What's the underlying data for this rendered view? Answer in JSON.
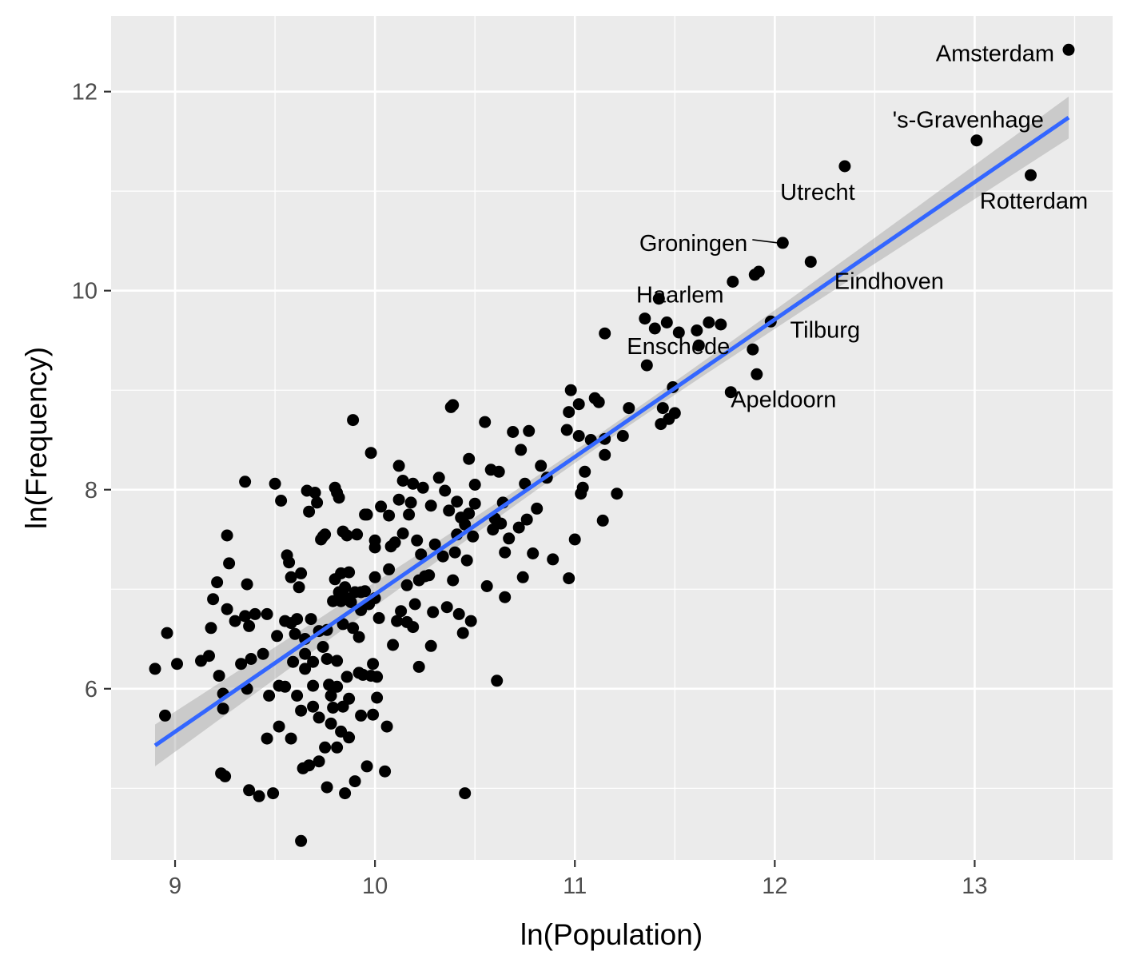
{
  "chart_data": {
    "type": "scatter",
    "xlabel": "ln(Population)",
    "ylabel": "ln(Frequency)",
    "xlim": [
      8.68,
      13.69
    ],
    "ylim": [
      4.28,
      12.76
    ],
    "x_ticks": [
      9,
      10,
      11,
      12,
      13
    ],
    "y_ticks": [
      6,
      8,
      10,
      12
    ],
    "grid": true,
    "legend": "none",
    "colors": {
      "panel": "#ebebeb",
      "grid": "#ffffff",
      "point": "#000000",
      "fit_line": "#3366ff",
      "confidence_band": "#999999"
    },
    "fit": {
      "method": "linear",
      "x": [
        8.9,
        13.47
      ],
      "y": [
        5.43,
        11.74
      ],
      "ci_halfwidth_ends": 0.21,
      "ci_halfwidth_center": 0.06
    },
    "labeled_points": [
      {
        "label": "Amsterdam",
        "x": 13.47,
        "y": 12.42
      },
      {
        "label": "'s-Gravenhage",
        "x": 13.01,
        "y": 11.51
      },
      {
        "label": "Rotterdam",
        "x": 13.28,
        "y": 11.16
      },
      {
        "label": "Utrecht",
        "x": 12.35,
        "y": 11.25
      },
      {
        "label": "Groningen",
        "x": 12.04,
        "y": 10.48
      },
      {
        "label": "Eindhoven",
        "x": 12.18,
        "y": 10.29
      },
      {
        "label": "Haarlem",
        "x": 11.79,
        "y": 10.09
      },
      {
        "label": "Tilburg",
        "x": 11.98,
        "y": 9.69
      },
      {
        "label": "Enschede",
        "x": 11.63,
        "y": 9.45
      },
      {
        "label": "Apeldoorn",
        "x": 11.78,
        "y": 8.98
      }
    ],
    "points": [
      [
        8.9,
        6.2
      ],
      [
        8.95,
        5.73
      ],
      [
        8.96,
        6.56
      ],
      [
        9.01,
        6.25
      ],
      [
        9.13,
        6.28
      ],
      [
        9.17,
        6.33
      ],
      [
        9.18,
        6.61
      ],
      [
        9.19,
        6.9
      ],
      [
        9.21,
        7.07
      ],
      [
        9.22,
        6.13
      ],
      [
        9.23,
        5.15
      ],
      [
        9.24,
        5.95
      ],
      [
        9.24,
        5.8
      ],
      [
        9.25,
        5.12
      ],
      [
        9.26,
        6.8
      ],
      [
        9.26,
        7.54
      ],
      [
        9.27,
        7.26
      ],
      [
        9.3,
        6.68
      ],
      [
        9.33,
        6.25
      ],
      [
        9.35,
        8.08
      ],
      [
        9.35,
        6.73
      ],
      [
        9.36,
        7.05
      ],
      [
        9.36,
        6.0
      ],
      [
        9.37,
        6.63
      ],
      [
        9.37,
        4.98
      ],
      [
        9.38,
        6.3
      ],
      [
        9.4,
        6.75
      ],
      [
        9.42,
        4.92
      ],
      [
        9.44,
        6.35
      ],
      [
        9.46,
        5.5
      ],
      [
        9.46,
        6.75
      ],
      [
        9.47,
        5.93
      ],
      [
        9.49,
        4.95
      ],
      [
        9.5,
        8.06
      ],
      [
        9.51,
        6.53
      ],
      [
        9.52,
        5.62
      ],
      [
        9.52,
        6.03
      ],
      [
        9.53,
        7.89
      ],
      [
        9.55,
        6.02
      ],
      [
        9.55,
        6.68
      ],
      [
        9.56,
        7.34
      ],
      [
        9.57,
        7.27
      ],
      [
        9.58,
        7.12
      ],
      [
        9.58,
        5.5
      ],
      [
        9.58,
        6.66
      ],
      [
        9.59,
        6.27
      ],
      [
        9.6,
        6.55
      ],
      [
        9.61,
        6.7
      ],
      [
        9.61,
        5.93
      ],
      [
        9.62,
        7.02
      ],
      [
        9.63,
        5.78
      ],
      [
        9.63,
        7.16
      ],
      [
        9.63,
        4.47
      ],
      [
        9.64,
        5.2
      ],
      [
        9.65,
        6.35
      ],
      [
        9.65,
        6.5
      ],
      [
        9.65,
        6.2
      ],
      [
        9.66,
        7.99
      ],
      [
        9.67,
        7.78
      ],
      [
        9.67,
        5.23
      ],
      [
        9.68,
        6.7
      ],
      [
        9.69,
        6.03
      ],
      [
        9.69,
        6.27
      ],
      [
        9.69,
        5.82
      ],
      [
        9.7,
        7.97
      ],
      [
        9.71,
        7.87
      ],
      [
        9.72,
        5.27
      ],
      [
        9.72,
        6.58
      ],
      [
        9.72,
        5.71
      ],
      [
        9.73,
        7.5
      ],
      [
        9.74,
        6.42
      ],
      [
        9.74,
        7.53
      ],
      [
        9.75,
        5.41
      ],
      [
        9.75,
        7.55
      ],
      [
        9.76,
        6.3
      ],
      [
        9.76,
        6.59
      ],
      [
        9.76,
        5.01
      ],
      [
        9.77,
        6.04
      ],
      [
        9.78,
        5.93
      ],
      [
        9.78,
        5.65
      ],
      [
        9.79,
        6.88
      ],
      [
        9.79,
        5.81
      ],
      [
        9.8,
        8.02
      ],
      [
        9.8,
        7.1
      ],
      [
        9.81,
        7.97
      ],
      [
        9.81,
        6.02
      ],
      [
        9.81,
        6.28
      ],
      [
        9.81,
        5.41
      ],
      [
        9.82,
        7.92
      ],
      [
        9.82,
        6.97
      ],
      [
        9.83,
        6.88
      ],
      [
        9.83,
        5.57
      ],
      [
        9.83,
        7.16
      ],
      [
        9.84,
        6.65
      ],
      [
        9.84,
        5.82
      ],
      [
        9.84,
        7.58
      ],
      [
        9.85,
        7.02
      ],
      [
        9.85,
        4.95
      ],
      [
        9.85,
        6.92
      ],
      [
        9.86,
        7.54
      ],
      [
        9.86,
        6.12
      ],
      [
        9.87,
        5.9
      ],
      [
        9.87,
        5.51
      ],
      [
        9.87,
        7.17
      ],
      [
        9.88,
        6.87
      ],
      [
        9.89,
        8.7
      ],
      [
        9.89,
        6.61
      ],
      [
        9.9,
        5.07
      ],
      [
        9.9,
        6.97
      ],
      [
        9.91,
        7.55
      ],
      [
        9.92,
        6.16
      ],
      [
        9.92,
        6.52
      ],
      [
        9.93,
        6.97
      ],
      [
        9.93,
        5.73
      ],
      [
        9.93,
        6.79
      ],
      [
        9.94,
        6.14
      ],
      [
        9.95,
        7.75
      ],
      [
        9.95,
        6.98
      ],
      [
        9.96,
        7.75
      ],
      [
        9.96,
        5.22
      ],
      [
        9.97,
        6.85
      ],
      [
        9.98,
        8.37
      ],
      [
        9.98,
        6.13
      ],
      [
        9.99,
        6.25
      ],
      [
        9.99,
        5.74
      ],
      [
        10.0,
        7.12
      ],
      [
        10.0,
        7.49
      ],
      [
        10.0,
        7.42
      ],
      [
        10.0,
        6.91
      ],
      [
        10.01,
        6.12
      ],
      [
        10.01,
        5.91
      ],
      [
        10.02,
        6.71
      ],
      [
        10.03,
        7.83
      ],
      [
        10.05,
        5.17
      ],
      [
        10.06,
        5.62
      ],
      [
        10.07,
        7.74
      ],
      [
        10.07,
        7.2
      ],
      [
        10.08,
        7.43
      ],
      [
        10.09,
        6.44
      ],
      [
        10.1,
        7.47
      ],
      [
        10.11,
        6.68
      ],
      [
        10.12,
        7.9
      ],
      [
        10.12,
        8.24
      ],
      [
        10.13,
        6.78
      ],
      [
        10.14,
        7.56
      ],
      [
        10.14,
        8.09
      ],
      [
        10.16,
        6.67
      ],
      [
        10.16,
        7.04
      ],
      [
        10.17,
        7.75
      ],
      [
        10.18,
        7.87
      ],
      [
        10.19,
        6.62
      ],
      [
        10.19,
        8.06
      ],
      [
        10.2,
        6.85
      ],
      [
        10.21,
        7.49
      ],
      [
        10.22,
        6.22
      ],
      [
        10.22,
        7.09
      ],
      [
        10.23,
        7.35
      ],
      [
        10.24,
        8.02
      ],
      [
        10.25,
        7.13
      ],
      [
        10.27,
        7.14
      ],
      [
        10.28,
        7.84
      ],
      [
        10.28,
        6.43
      ],
      [
        10.29,
        6.77
      ],
      [
        10.3,
        7.45
      ],
      [
        10.32,
        8.12
      ],
      [
        10.34,
        7.33
      ],
      [
        10.35,
        7.99
      ],
      [
        10.36,
        6.82
      ],
      [
        10.37,
        7.79
      ],
      [
        10.38,
        8.83
      ],
      [
        10.39,
        8.85
      ],
      [
        10.39,
        7.09
      ],
      [
        10.4,
        7.37
      ],
      [
        10.41,
        7.55
      ],
      [
        10.41,
        7.88
      ],
      [
        10.42,
        6.75
      ],
      [
        10.43,
        7.72
      ],
      [
        10.44,
        6.56
      ],
      [
        10.45,
        4.95
      ],
      [
        10.45,
        7.65
      ],
      [
        10.46,
        7.29
      ],
      [
        10.47,
        8.31
      ],
      [
        10.47,
        7.76
      ],
      [
        10.48,
        6.68
      ],
      [
        10.49,
        7.53
      ],
      [
        10.5,
        8.05
      ],
      [
        10.5,
        7.86
      ],
      [
        10.55,
        8.68
      ],
      [
        10.56,
        7.03
      ],
      [
        10.58,
        8.2
      ],
      [
        10.59,
        7.6
      ],
      [
        10.6,
        7.71
      ],
      [
        10.61,
        6.08
      ],
      [
        10.62,
        8.18
      ],
      [
        10.63,
        7.66
      ],
      [
        10.64,
        7.87
      ],
      [
        10.65,
        6.92
      ],
      [
        10.65,
        7.37
      ],
      [
        10.67,
        7.51
      ],
      [
        10.69,
        8.58
      ],
      [
        10.72,
        7.62
      ],
      [
        10.73,
        8.4
      ],
      [
        10.74,
        7.12
      ],
      [
        10.75,
        8.06
      ],
      [
        10.76,
        7.7
      ],
      [
        10.77,
        8.59
      ],
      [
        10.79,
        7.36
      ],
      [
        10.81,
        7.81
      ],
      [
        10.83,
        8.24
      ],
      [
        10.86,
        8.12
      ],
      [
        10.89,
        7.3
      ],
      [
        10.96,
        8.6
      ],
      [
        10.97,
        7.11
      ],
      [
        10.97,
        8.78
      ],
      [
        10.98,
        9.0
      ],
      [
        11.0,
        7.5
      ],
      [
        11.02,
        8.86
      ],
      [
        11.02,
        8.54
      ],
      [
        11.03,
        7.96
      ],
      [
        11.04,
        8.02
      ],
      [
        11.05,
        8.18
      ],
      [
        11.08,
        8.5
      ],
      [
        11.1,
        8.92
      ],
      [
        11.12,
        8.88
      ],
      [
        11.14,
        7.69
      ],
      [
        11.15,
        8.51
      ],
      [
        11.15,
        9.57
      ],
      [
        11.15,
        8.35
      ],
      [
        11.21,
        7.96
      ],
      [
        11.24,
        8.54
      ],
      [
        11.27,
        8.82
      ],
      [
        11.35,
        9.72
      ],
      [
        11.36,
        9.25
      ],
      [
        11.4,
        9.62
      ],
      [
        11.42,
        9.92
      ],
      [
        11.43,
        8.66
      ],
      [
        11.44,
        8.82
      ],
      [
        11.46,
        9.68
      ],
      [
        11.47,
        8.71
      ],
      [
        11.49,
        9.03
      ],
      [
        11.5,
        8.77
      ],
      [
        11.52,
        9.58
      ],
      [
        11.61,
        9.6
      ],
      [
        11.62,
        9.45
      ],
      [
        11.67,
        9.68
      ],
      [
        11.73,
        9.66
      ],
      [
        11.78,
        8.98
      ],
      [
        11.79,
        10.09
      ],
      [
        11.89,
        9.41
      ],
      [
        11.9,
        10.16
      ],
      [
        11.91,
        9.16
      ],
      [
        11.92,
        10.19
      ],
      [
        11.98,
        9.69
      ],
      [
        12.04,
        10.48
      ],
      [
        12.18,
        10.29
      ],
      [
        12.35,
        11.25
      ],
      [
        13.01,
        11.51
      ],
      [
        13.28,
        11.16
      ],
      [
        13.47,
        12.42
      ]
    ]
  }
}
